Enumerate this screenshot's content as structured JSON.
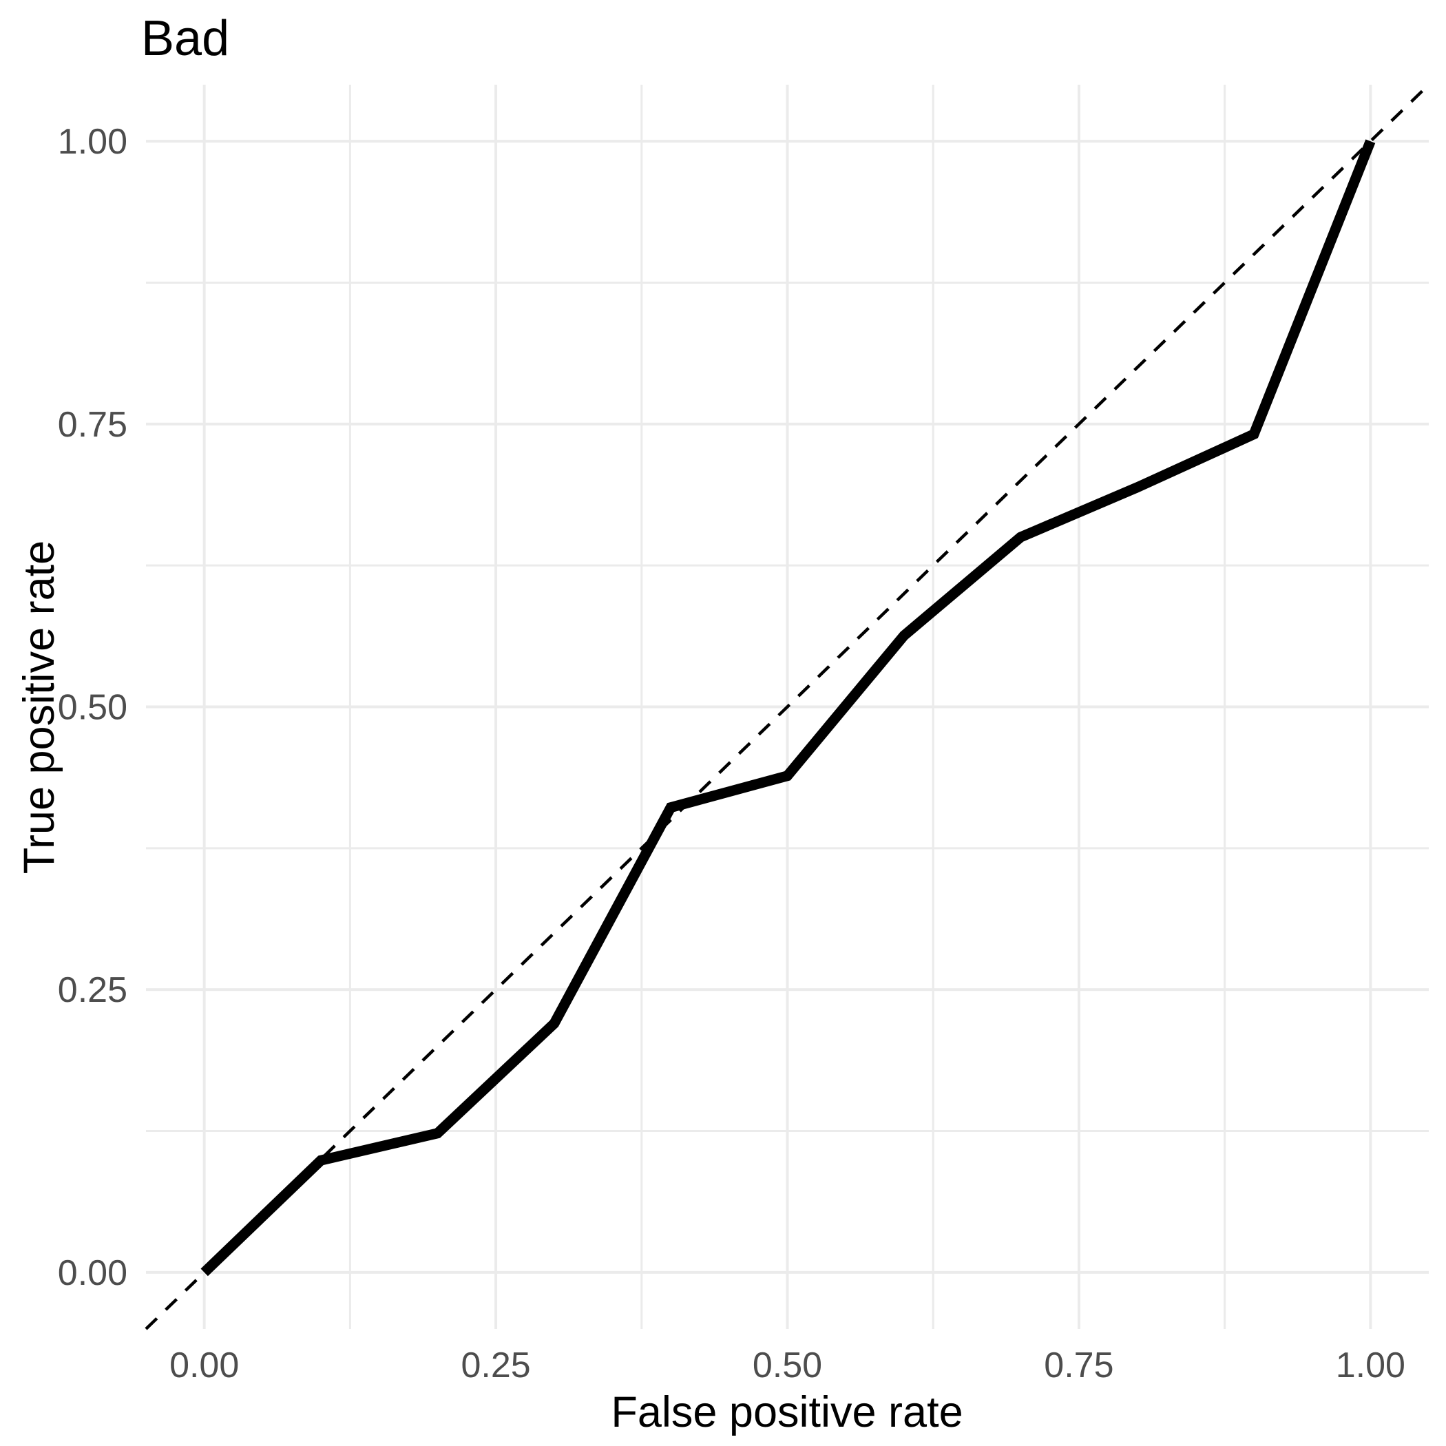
{
  "title": "Bad",
  "colors": {
    "background": "#FFFFFF",
    "grid": "#EBEBEB",
    "axis_text": "#4D4D4D",
    "title_text": "#000000",
    "axis_title_text": "#000000",
    "roc_line": "#000000",
    "diagonal_line": "#000000"
  },
  "chart_data": {
    "type": "line",
    "title": "Bad",
    "xlabel": "False positive rate",
    "ylabel": "True positive rate",
    "xlim": [
      0,
      1
    ],
    "ylim": [
      0,
      1
    ],
    "expansion": 0.05,
    "grid": "major+minor",
    "legend": "none",
    "x_ticks": [
      0,
      0.25,
      0.5,
      0.75,
      1.0
    ],
    "x_tick_labels": [
      "0.00",
      "0.25",
      "0.50",
      "0.75",
      "1.00"
    ],
    "y_ticks": [
      0,
      0.25,
      0.5,
      0.75,
      1.0
    ],
    "y_tick_labels": [
      "0.00",
      "0.25",
      "0.50",
      "0.75",
      "1.00"
    ],
    "series": [
      {
        "name": "roc-curve",
        "style": "solid",
        "stroke_width": 15,
        "color": "#000000",
        "points": [
          [
            0.0,
            0.0
          ],
          [
            0.1,
            0.099
          ],
          [
            0.2,
            0.123
          ],
          [
            0.3,
            0.22
          ],
          [
            0.4,
            0.411
          ],
          [
            0.5,
            0.439
          ],
          [
            0.6,
            0.563
          ],
          [
            0.7,
            0.65
          ],
          [
            0.8,
            0.694
          ],
          [
            0.9,
            0.741
          ],
          [
            1.0,
            1.0
          ]
        ]
      },
      {
        "name": "chance-diagonal",
        "style": "dashed",
        "stroke_width": 4.5,
        "color": "#000000",
        "points": [
          [
            -0.05,
            -0.05
          ],
          [
            1.05,
            1.05
          ]
        ]
      }
    ]
  }
}
